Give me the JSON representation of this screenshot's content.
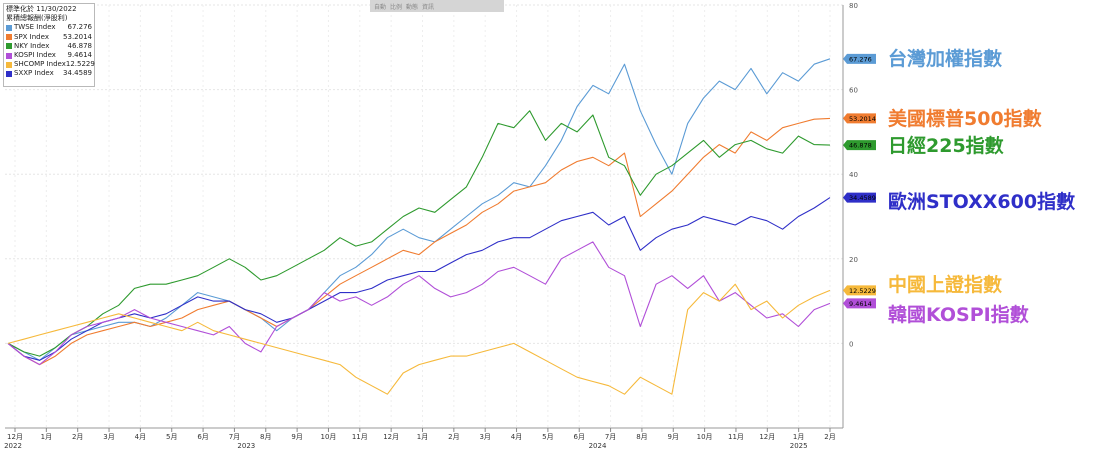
{
  "legend": {
    "header_line1": "標準化於 11/30/2022",
    "header_line2": "累積總報酬(淨股利)",
    "items": [
      {
        "name": "TWSE Index",
        "value": "67.276",
        "color": "#5b9bd5"
      },
      {
        "name": "SPX Index",
        "value": "53.2014",
        "color": "#f07c30"
      },
      {
        "name": "NKY Index",
        "value": "46.878",
        "color": "#2e9a2e"
      },
      {
        "name": "KOSPI Index",
        "value": "9.4614",
        "color": "#b14fd8"
      },
      {
        "name": "SHCOMP Index",
        "value": "12.5229",
        "color": "#f6b93b"
      },
      {
        "name": "SXXP Index",
        "value": "34.4589",
        "color": "#2f2fc8"
      }
    ]
  },
  "toolbar": {
    "buttons": [
      "自動",
      "比例",
      "動態",
      "資訊"
    ]
  },
  "annotations": [
    {
      "text": "台灣加權指數",
      "color": "#5b9bd5"
    },
    {
      "text": "美國標普500指數",
      "color": "#f07c30"
    },
    {
      "text": "日經225指數",
      "color": "#2e9a2e"
    },
    {
      "text": "歐洲STOXX600指數",
      "color": "#2f2fc8"
    },
    {
      "text": "中國上證指數",
      "color": "#f6b93b"
    },
    {
      "text": "韓國KOSPI指數",
      "color": "#b14fd8"
    }
  ],
  "chart_data": {
    "type": "line",
    "x_tick_labels": [
      "12月",
      "1月",
      "2月",
      "3月",
      "4月",
      "5月",
      "6月",
      "7月",
      "8月",
      "9月",
      "10月",
      "11月",
      "12月",
      "1月",
      "2月",
      "3月",
      "4月",
      "5月",
      "6月",
      "7月",
      "8月",
      "9月",
      "10月",
      "11月",
      "12月",
      "1月",
      "2月"
    ],
    "year_labels": [
      "2022",
      "2023",
      "2024",
      "2025"
    ],
    "y_ticks": [
      0,
      20,
      40,
      60,
      80
    ],
    "ylim": [
      -20,
      80
    ],
    "grid": true,
    "legend_position": "top-left",
    "series": [
      {
        "name": "TWSE Index",
        "color": "#5b9bd5",
        "end_label": "67.276",
        "values": [
          0,
          -2,
          -4,
          -1,
          2,
          3,
          4,
          5,
          5,
          4,
          6,
          9,
          12,
          11,
          10,
          8,
          6,
          3,
          6,
          8,
          12,
          16,
          18,
          21,
          25,
          27,
          25,
          24,
          27,
          30,
          33,
          35,
          38,
          37,
          42,
          48,
          56,
          61,
          59,
          66,
          55,
          47,
          40,
          52,
          58,
          62,
          60,
          65,
          59,
          64,
          62,
          66,
          67.276
        ]
      },
      {
        "name": "SPX Index",
        "color": "#f07c30",
        "end_label": "53.2014",
        "values": [
          0,
          -3,
          -5,
          -3,
          0,
          2,
          3,
          4,
          5,
          4,
          5,
          6,
          8,
          9,
          10,
          8,
          6,
          4,
          6,
          8,
          11,
          14,
          16,
          18,
          20,
          22,
          21,
          24,
          26,
          28,
          31,
          33,
          36,
          37,
          38,
          41,
          43,
          44,
          42,
          45,
          30,
          33,
          36,
          40,
          44,
          47,
          45,
          50,
          48,
          51,
          52,
          53,
          53.2014
        ]
      },
      {
        "name": "NKY Index",
        "color": "#2e9a2e",
        "end_label": "46.878",
        "values": [
          0,
          -2,
          -3,
          -1,
          2,
          4,
          7,
          9,
          13,
          14,
          14,
          15,
          16,
          18,
          20,
          18,
          15,
          16,
          18,
          20,
          22,
          25,
          23,
          24,
          27,
          30,
          32,
          31,
          34,
          37,
          44,
          52,
          51,
          55,
          48,
          52,
          50,
          54,
          44,
          42,
          35,
          40,
          42,
          45,
          48,
          44,
          47,
          48,
          46,
          45,
          49,
          47,
          46.878
        ]
      },
      {
        "name": "SXXP Index",
        "color": "#2f2fc8",
        "end_label": "34.4589",
        "values": [
          0,
          -3,
          -4,
          -2,
          1,
          3,
          5,
          6,
          7,
          6,
          7,
          9,
          11,
          10,
          10,
          8,
          7,
          5,
          6,
          8,
          10,
          12,
          12,
          13,
          15,
          16,
          17,
          17,
          19,
          21,
          22,
          24,
          25,
          25,
          27,
          29,
          30,
          31,
          28,
          30,
          22,
          25,
          27,
          28,
          30,
          29,
          28,
          30,
          29,
          27,
          30,
          32,
          34.4589
        ]
      },
      {
        "name": "KOSPI Index",
        "color": "#b14fd8",
        "end_label": "9.4614",
        "values": [
          0,
          -3,
          -5,
          -2,
          2,
          4,
          5,
          6,
          8,
          6,
          5,
          4,
          3,
          2,
          4,
          0,
          -2,
          4,
          6,
          8,
          12,
          10,
          11,
          9,
          11,
          14,
          16,
          13,
          11,
          12,
          14,
          17,
          18,
          16,
          14,
          20,
          22,
          24,
          18,
          16,
          4,
          14,
          16,
          13,
          16,
          10,
          12,
          9,
          6,
          7,
          4,
          8,
          9.4614
        ]
      },
      {
        "name": "SHCOMP Index",
        "color": "#f6b93b",
        "end_label": "12.5229",
        "values": [
          0,
          1,
          2,
          3,
          4,
          5,
          6,
          7,
          6,
          5,
          4,
          3,
          5,
          3,
          2,
          1,
          0,
          -1,
          -2,
          -3,
          -4,
          -5,
          -8,
          -10,
          -12,
          -7,
          -5,
          -4,
          -3,
          -3,
          -2,
          -1,
          0,
          -2,
          -4,
          -6,
          -8,
          -9,
          -10,
          -12,
          -8,
          -10,
          -12,
          8,
          12,
          10,
          14,
          8,
          10,
          6,
          9,
          11,
          12.5229
        ]
      }
    ]
  }
}
